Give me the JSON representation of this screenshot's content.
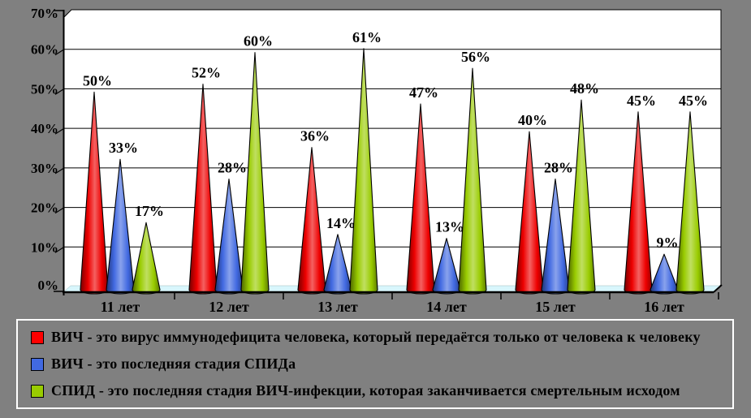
{
  "background_color": "#808080",
  "plot": {
    "wall_color": "#ffffff",
    "floor_color": "#d8f6fc",
    "gridline_color": "#000000",
    "axis_color": "#000000"
  },
  "chart_data": {
    "type": "bar",
    "bar_shape": "cone",
    "title": "",
    "xlabel": "",
    "ylabel": "",
    "ylim": [
      0,
      70
    ],
    "ytick_step": 10,
    "ytick_labels": [
      "0%",
      "10%",
      "20%",
      "30%",
      "40%",
      "50%",
      "60%",
      "70%"
    ],
    "grid": true,
    "legend_position": "bottom",
    "data_labels": true,
    "categories": [
      "11 лет",
      "12 лет",
      "13 лет",
      "14 лет",
      "15 лет",
      "16 лет"
    ],
    "series": [
      {
        "name": "ВИЧ - это вирус иммунодефицита человека, который передаётся только от человека к человеку",
        "color": "#ee0000",
        "legend_color": "#ff0000",
        "values": [
          50,
          52,
          36,
          47,
          40,
          45
        ]
      },
      {
        "name": "ВИЧ - это последняя стадия СПИДа",
        "color": "#4169e1",
        "legend_color": "#4169e1",
        "values": [
          33,
          28,
          14,
          13,
          28,
          9
        ]
      },
      {
        "name": "СПИД - это последняя стадия ВИЧ-инфекции, которая заканчивается смертельным исходом",
        "color": "#99cc00",
        "legend_color": "#99cc00",
        "values": [
          17,
          60,
          61,
          56,
          48,
          45
        ]
      }
    ]
  }
}
